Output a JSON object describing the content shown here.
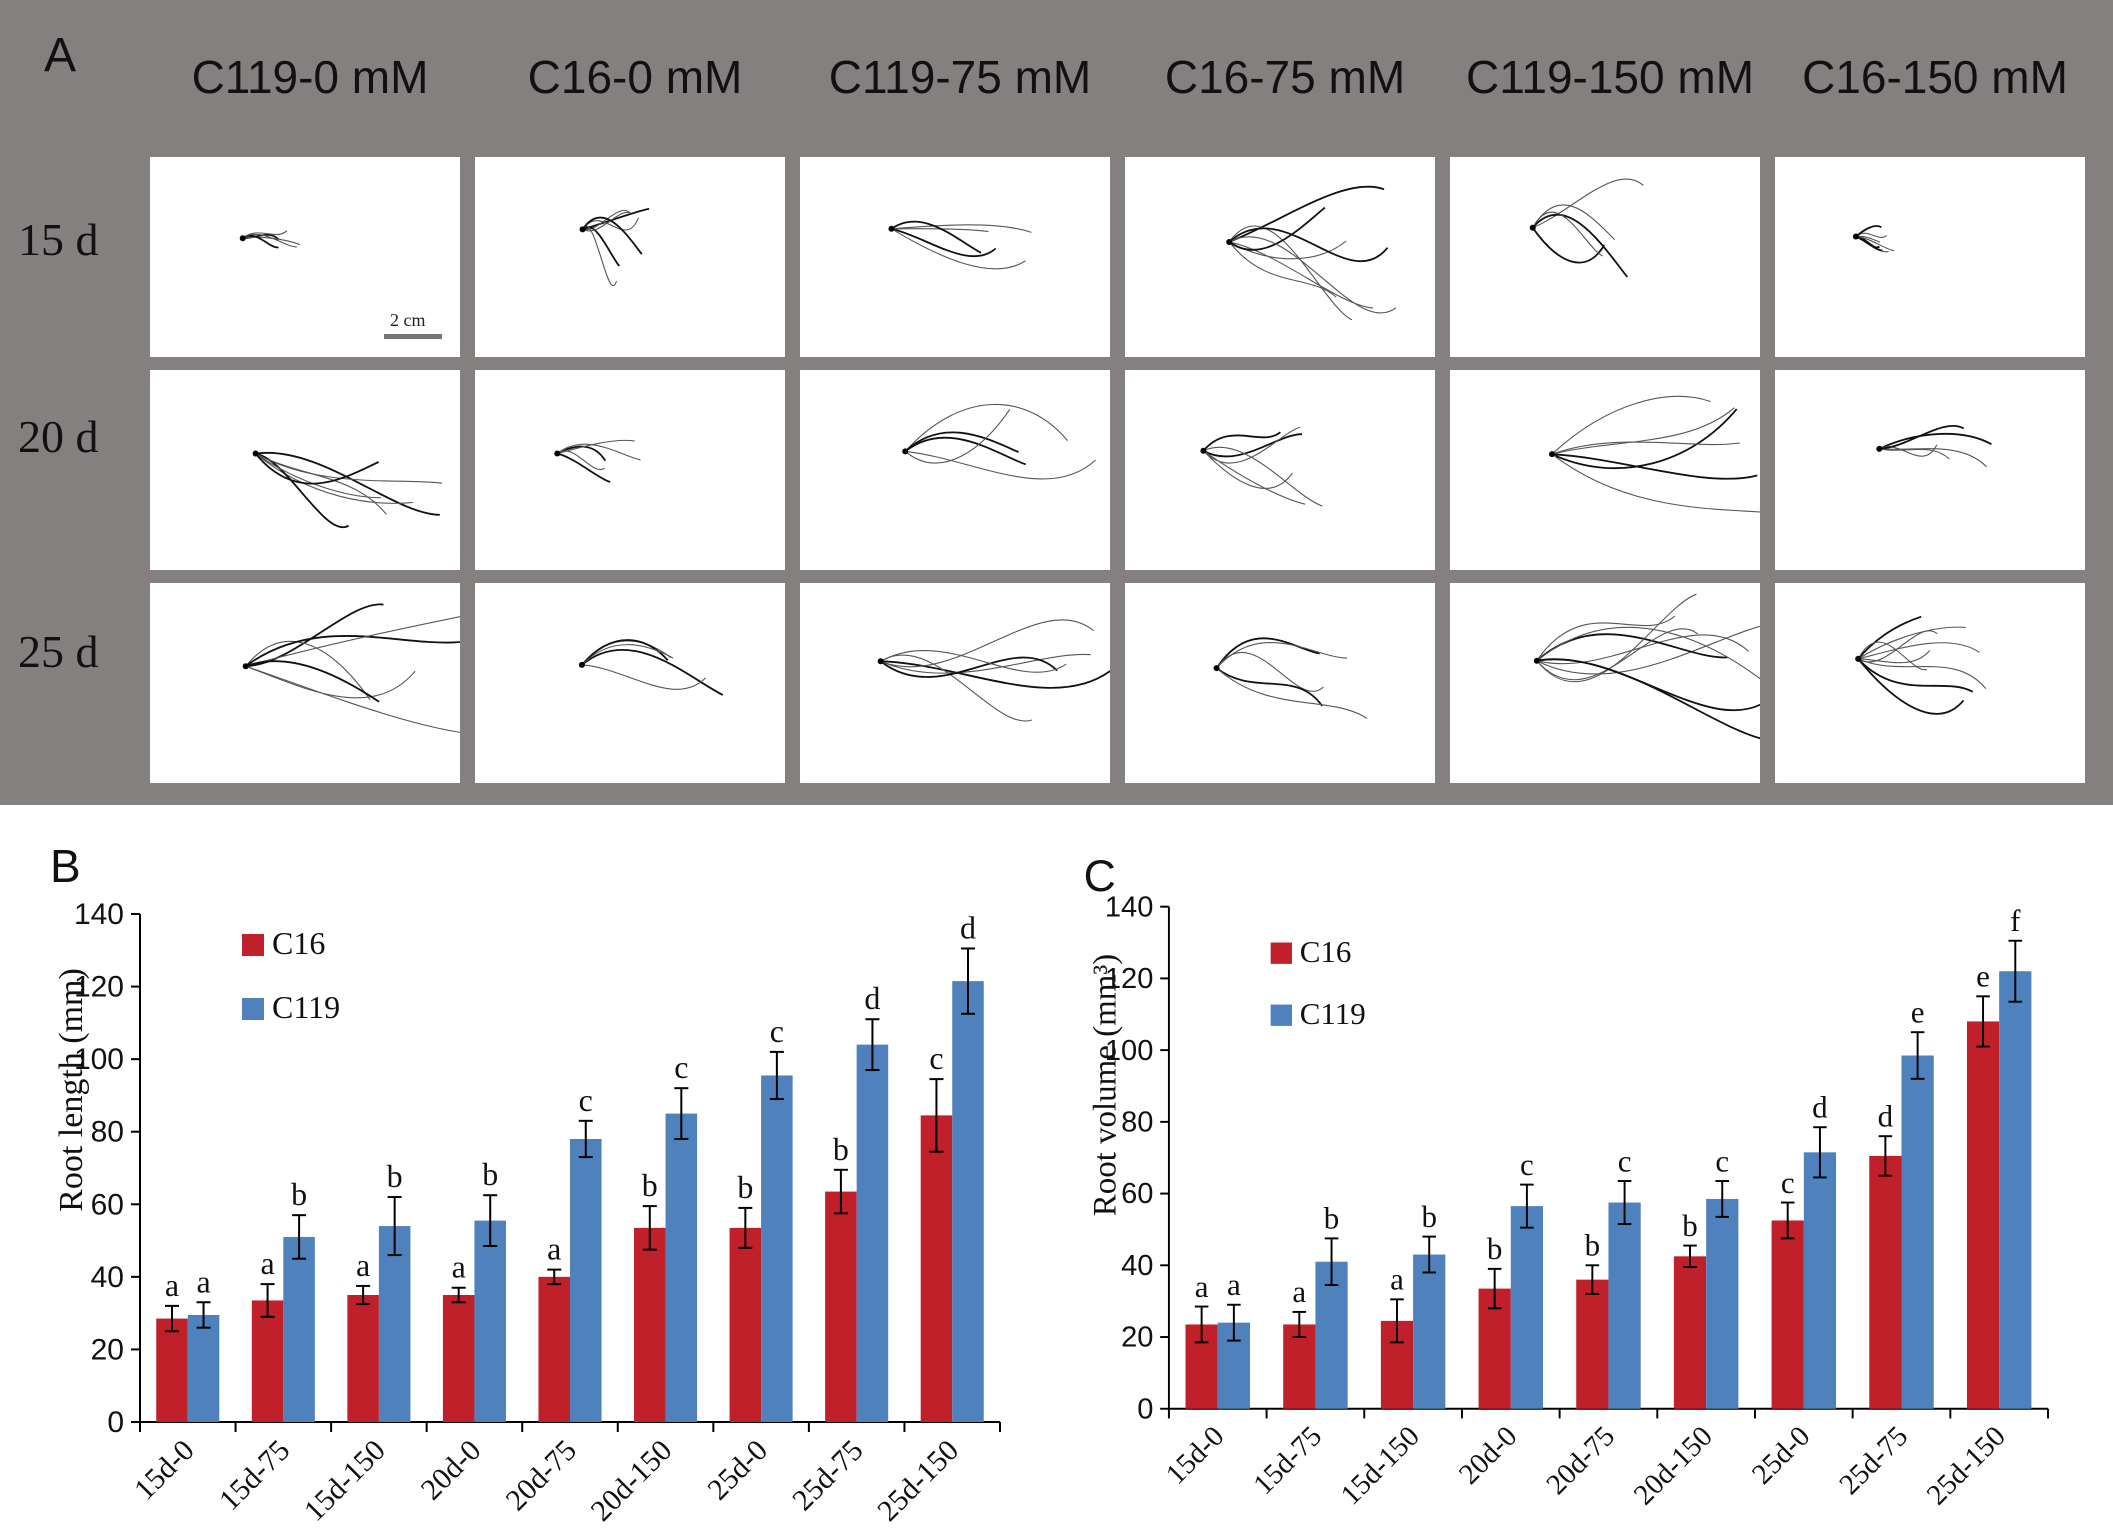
{
  "panelA": {
    "label": "A",
    "columns": [
      "C119-0 mM",
      "C16-0 mM",
      "C119-75 mM",
      "C16-75 mM",
      "C119-150 mM",
      "C16-150 mM"
    ],
    "rows": [
      "15 d",
      "20 d",
      "25 d"
    ],
    "scale_label": "2 cm",
    "background_color": "#858080"
  },
  "chart_data": [
    {
      "panel": "B",
      "type": "bar",
      "ylabel": "Root length  (mm)",
      "xlabel": "",
      "ylim": [
        0,
        140
      ],
      "yticks": [
        0,
        20,
        40,
        60,
        80,
        100,
        120,
        140
      ],
      "legend_position": "top-left",
      "categories": [
        "15d-0",
        "15d-75",
        "15d-150",
        "20d-0",
        "20d-75",
        "20d-150",
        "25d-0",
        "25d-75",
        "25d-150"
      ],
      "series": [
        {
          "name": "C16",
          "color": "#c0202a",
          "values": [
            28.5,
            33.5,
            35,
            35,
            40,
            53.5,
            53.5,
            63.5,
            84.5
          ],
          "errors": [
            3.5,
            4.5,
            2.5,
            2,
            2,
            6,
            5.5,
            6,
            10
          ],
          "letters": [
            "a",
            "a",
            "a",
            "a",
            "a",
            "b",
            "b",
            "b",
            "c"
          ]
        },
        {
          "name": "C119",
          "color": "#4f81bd",
          "values": [
            29.5,
            51,
            54,
            55.5,
            78,
            85,
            95.5,
            104,
            121.5
          ],
          "errors": [
            3.5,
            6,
            8,
            7,
            5,
            7,
            6.5,
            7,
            9
          ],
          "letters": [
            "a",
            "b",
            "b",
            "b",
            "c",
            "c",
            "c",
            "d",
            "d"
          ]
        }
      ]
    },
    {
      "panel": "C",
      "type": "bar",
      "ylabel": "Root volume  (mm³)",
      "xlabel": "",
      "ylim": [
        0,
        140
      ],
      "yticks": [
        0,
        20,
        40,
        60,
        80,
        100,
        120,
        140
      ],
      "legend_position": "top-left",
      "categories": [
        "15d-0",
        "15d-75",
        "15d-150",
        "20d-0",
        "20d-75",
        "20d-150",
        "25d-0",
        "25d-75",
        "25d-150"
      ],
      "series": [
        {
          "name": "C16",
          "color": "#c0202a",
          "values": [
            23.5,
            23.5,
            24.5,
            33.5,
            36,
            42.5,
            52.5,
            70.5,
            108
          ],
          "errors": [
            5,
            3.5,
            6,
            5.5,
            4,
            3,
            5,
            5.5,
            7
          ],
          "letters": [
            "a",
            "a",
            "a",
            "b",
            "b",
            "b",
            "c",
            "d",
            "e"
          ]
        },
        {
          "name": "C119",
          "color": "#4f81bd",
          "values": [
            24,
            41,
            43,
            56.5,
            57.5,
            58.5,
            71.5,
            98.5,
            122
          ],
          "errors": [
            5,
            6.5,
            5,
            6,
            6,
            5,
            7,
            6.5,
            8.5
          ],
          "letters": [
            "a",
            "b",
            "b",
            "c",
            "c",
            "c",
            "d",
            "e",
            "f"
          ]
        }
      ]
    }
  ]
}
